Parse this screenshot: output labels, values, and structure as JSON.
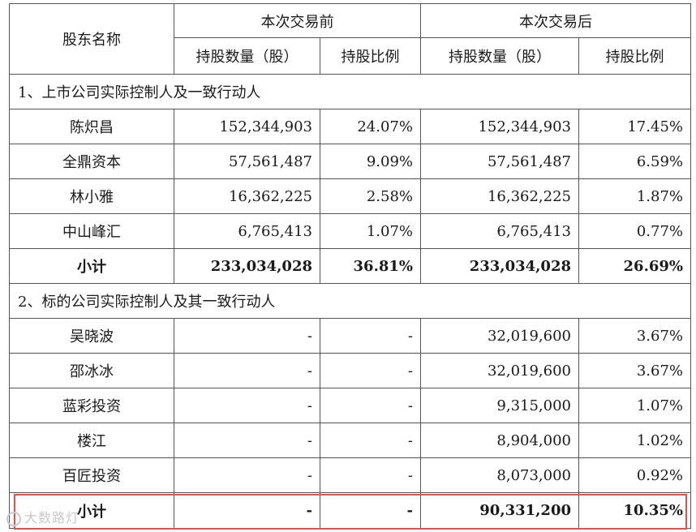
{
  "header": {
    "shareholder": "股东名称",
    "before": "本次交易前",
    "after": "本次交易后",
    "shares": "持股数量（股）",
    "ratio": "持股比例"
  },
  "section1": {
    "title": "1、上市公司实际控制人及一致行动人",
    "rows": [
      {
        "name": "陈炽昌",
        "before_shares": "152,344,903",
        "before_ratio": "24.07%",
        "after_shares": "152,344,903",
        "after_ratio": "17.45%"
      },
      {
        "name": "全鼎资本",
        "before_shares": "57,561,487",
        "before_ratio": "9.09%",
        "after_shares": "57,561,487",
        "after_ratio": "6.59%"
      },
      {
        "name": "林小雅",
        "before_shares": "16,362,225",
        "before_ratio": "2.58%",
        "after_shares": "16,362,225",
        "after_ratio": "1.87%"
      },
      {
        "name": "中山峰汇",
        "before_shares": "6,765,413",
        "before_ratio": "1.07%",
        "after_shares": "6,765,413",
        "after_ratio": "0.77%"
      }
    ],
    "subtotal": {
      "name": "小计",
      "before_shares": "233,034,028",
      "before_ratio": "36.81%",
      "after_shares": "233,034,028",
      "after_ratio": "26.69%"
    }
  },
  "section2": {
    "title": "2、标的公司实际控制人及其一致行动人",
    "rows": [
      {
        "name": "吴晓波",
        "before_shares": "-",
        "before_ratio": "-",
        "after_shares": "32,019,600",
        "after_ratio": "3.67%"
      },
      {
        "name": "邵冰冰",
        "before_shares": "-",
        "before_ratio": "-",
        "after_shares": "32,019,600",
        "after_ratio": "3.67%"
      },
      {
        "name": "蓝彩投资",
        "before_shares": "-",
        "before_ratio": "-",
        "after_shares": "9,315,000",
        "after_ratio": "1.07%"
      },
      {
        "name": "楼江",
        "before_shares": "-",
        "before_ratio": "-",
        "after_shares": "8,904,000",
        "after_ratio": "1.02%"
      },
      {
        "name": "百匠投资",
        "before_shares": "-",
        "before_ratio": "-",
        "after_shares": "8,073,000",
        "after_ratio": "0.92%"
      }
    ],
    "subtotal": {
      "name": "小计",
      "before_shares": "-",
      "before_ratio": "-",
      "after_shares": "90,331,200",
      "after_ratio": "10.35%"
    }
  },
  "watermark": "大数路灯",
  "colors": {
    "highlight_border": "#d9534f",
    "grid": "#555555",
    "watermark": "#c8c8c8"
  }
}
